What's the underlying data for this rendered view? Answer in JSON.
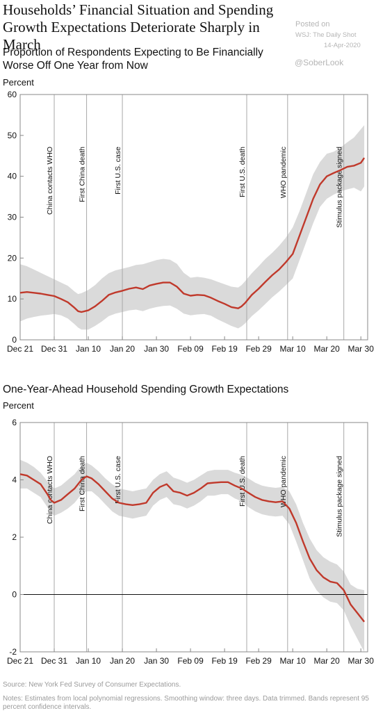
{
  "header": {
    "title": "Households’ Financial Situation and Spending Growth Expectations Deteriorate Sharply in March"
  },
  "watermark": {
    "posted": "Posted on",
    "source": "WSJ: The Daily Shot",
    "date": "14-Apr-2020",
    "handle": "@SoberLook"
  },
  "footer": {
    "source": "Source: New York Fed Survey of Consumer Expectations.",
    "notes": "Notes: Estimates from local polynomial regressions. Smoothing window: three days. Data trimmed. Bands represent 95 percent confidence intervals."
  },
  "colors": {
    "line": "#c0392b",
    "band": "#dadada",
    "axis": "#888888",
    "eventline": "#a8a8a8"
  },
  "chart_data": [
    {
      "type": "line",
      "title": "Proportion of Respondents Expecting to Be Financially Worse Off One Year from Now",
      "ylabel": "Percent",
      "ylim": [
        0,
        60
      ],
      "yticks": [
        0,
        10,
        20,
        30,
        40,
        50,
        60
      ],
      "xlim": [
        0,
        102
      ],
      "xticks": [
        {
          "x": 0,
          "label": "Dec 21"
        },
        {
          "x": 10,
          "label": "Dec 31"
        },
        {
          "x": 20,
          "label": "Jan 10"
        },
        {
          "x": 30,
          "label": "Jan 20"
        },
        {
          "x": 40,
          "label": "Jan 30"
        },
        {
          "x": 50,
          "label": "Feb 09"
        },
        {
          "x": 60,
          "label": "Feb 19"
        },
        {
          "x": 70,
          "label": "Feb 29"
        },
        {
          "x": 80,
          "label": "Mar 10"
        },
        {
          "x": 90,
          "label": "Mar 20"
        },
        {
          "x": 100,
          "label": "Mar 30"
        }
      ],
      "events": [
        {
          "x": 10,
          "label": "China contacts WHO"
        },
        {
          "x": 19.5,
          "label": "First China death"
        },
        {
          "x": 30,
          "label": "First U.S. case"
        },
        {
          "x": 66.5,
          "label": "First U.S. death"
        },
        {
          "x": 78.5,
          "label": "WHO pandemic"
        },
        {
          "x": 95,
          "label": "Stimulus package signed"
        }
      ],
      "series": [
        {
          "x": [
            0,
            2,
            4,
            6,
            8,
            10,
            12,
            14,
            16,
            17,
            18,
            20,
            22,
            24,
            26,
            28,
            30,
            32,
            34,
            36,
            38,
            40,
            42,
            44,
            46,
            48,
            50,
            52,
            54,
            56,
            58,
            60,
            62,
            64,
            65,
            66,
            68,
            70,
            72,
            74,
            76,
            78,
            80,
            82,
            84,
            86,
            88,
            90,
            92,
            94,
            96,
            98,
            100,
            101
          ],
          "values": [
            11.5,
            11.7,
            11.5,
            11.3,
            11.0,
            10.7,
            10.0,
            9.2,
            7.8,
            7.0,
            6.8,
            7.2,
            8.2,
            9.5,
            11.0,
            11.6,
            12.0,
            12.5,
            12.8,
            12.4,
            13.3,
            13.7,
            14.0,
            14.0,
            13.0,
            11.3,
            10.8,
            11.0,
            10.9,
            10.3,
            9.5,
            8.8,
            8.0,
            7.7,
            8.2,
            9.0,
            11.0,
            12.5,
            14.2,
            15.8,
            17.2,
            19.0,
            21.0,
            25.5,
            30.0,
            34.5,
            38.0,
            40.0,
            40.8,
            41.5,
            42.3,
            42.6,
            43.3,
            44.5
          ],
          "upper": [
            18.5,
            18.0,
            17.2,
            16.4,
            15.6,
            14.8,
            14.0,
            13.2,
            11.8,
            11.2,
            11.4,
            12.2,
            13.4,
            15.0,
            16.3,
            17.0,
            17.4,
            17.8,
            18.3,
            18.5,
            19.0,
            19.5,
            19.8,
            19.6,
            18.6,
            16.4,
            15.2,
            15.4,
            15.2,
            14.8,
            14.2,
            13.6,
            13.0,
            12.8,
            13.4,
            14.3,
            16.3,
            18.0,
            19.8,
            21.3,
            23.0,
            25.0,
            27.5,
            31.5,
            36.0,
            40.5,
            43.5,
            45.5,
            46.0,
            47.0,
            48.3,
            49.5,
            51.5,
            52.5
          ],
          "lower": [
            4.5,
            5.2,
            5.6,
            5.9,
            6.1,
            6.3,
            6.0,
            5.2,
            3.8,
            3.0,
            2.5,
            2.5,
            3.4,
            4.5,
            5.8,
            6.4,
            6.8,
            7.2,
            7.4,
            7.0,
            7.6,
            8.0,
            8.3,
            8.4,
            7.6,
            6.4,
            6.0,
            6.2,
            6.3,
            5.9,
            5.0,
            4.2,
            3.4,
            2.8,
            3.3,
            4.0,
            5.8,
            7.2,
            8.8,
            10.4,
            11.8,
            13.4,
            15.0,
            19.5,
            24.0,
            28.5,
            32.5,
            34.5,
            35.5,
            36.3,
            36.8,
            37.2,
            36.3,
            37.5
          ]
        }
      ]
    },
    {
      "type": "line",
      "title": "One-Year-Ahead Household Spending Growth Expectations",
      "ylabel": "Percent",
      "ylim": [
        -2,
        6
      ],
      "yticks": [
        -2,
        0,
        2,
        4,
        6
      ],
      "xlim": [
        0,
        102
      ],
      "xticks": [
        {
          "x": 0,
          "label": "Dec 21"
        },
        {
          "x": 10,
          "label": "Dec 31"
        },
        {
          "x": 20,
          "label": "Jan 10"
        },
        {
          "x": 30,
          "label": "Jan 20"
        },
        {
          "x": 40,
          "label": "Jan 30"
        },
        {
          "x": 50,
          "label": "Feb 09"
        },
        {
          "x": 60,
          "label": "Feb 19"
        },
        {
          "x": 70,
          "label": "Feb 29"
        },
        {
          "x": 80,
          "label": "Mar 10"
        },
        {
          "x": 90,
          "label": "Mar 20"
        },
        {
          "x": 100,
          "label": "Mar 30"
        }
      ],
      "events": [
        {
          "x": 10,
          "label": "China contacts WHO"
        },
        {
          "x": 19.5,
          "label": "First China death"
        },
        {
          "x": 30,
          "label": "First U.S. case"
        },
        {
          "x": 66.5,
          "label": "First U.S. death"
        },
        {
          "x": 78.5,
          "label": "WHO pandemic"
        },
        {
          "x": 95,
          "label": "Stimulus package signed"
        }
      ],
      "series": [
        {
          "x": [
            0,
            2,
            4,
            6,
            8,
            9,
            10,
            12,
            14,
            16,
            18,
            19.5,
            21,
            23,
            25,
            27,
            29,
            31,
            33,
            35,
            37,
            39,
            41,
            43,
            45,
            47,
            49,
            51,
            53,
            55,
            57,
            59,
            61,
            63,
            65,
            67,
            69,
            71,
            73,
            75,
            77,
            79,
            81,
            83,
            85,
            87,
            89,
            91,
            93,
            95,
            97,
            99,
            101
          ],
          "values": [
            4.2,
            4.15,
            4.0,
            3.85,
            3.5,
            3.3,
            3.2,
            3.3,
            3.5,
            3.7,
            4.0,
            4.12,
            4.05,
            3.85,
            3.6,
            3.35,
            3.2,
            3.15,
            3.12,
            3.15,
            3.2,
            3.55,
            3.75,
            3.85,
            3.6,
            3.55,
            3.45,
            3.55,
            3.7,
            3.88,
            3.9,
            3.92,
            3.92,
            3.8,
            3.7,
            3.55,
            3.4,
            3.3,
            3.25,
            3.22,
            3.25,
            3.0,
            2.5,
            1.85,
            1.25,
            0.85,
            0.6,
            0.45,
            0.4,
            0.15,
            -0.35,
            -0.65,
            -0.95
          ],
          "upper": [
            4.7,
            4.6,
            4.45,
            4.25,
            3.95,
            3.8,
            3.7,
            3.8,
            4.0,
            4.2,
            4.5,
            4.6,
            4.5,
            4.3,
            4.05,
            3.85,
            3.7,
            3.65,
            3.6,
            3.65,
            3.7,
            4.0,
            4.2,
            4.3,
            4.08,
            4.0,
            3.9,
            4.0,
            4.15,
            4.3,
            4.35,
            4.35,
            4.35,
            4.25,
            4.18,
            4.05,
            3.9,
            3.8,
            3.75,
            3.72,
            3.75,
            3.6,
            3.15,
            2.5,
            1.95,
            1.55,
            1.3,
            1.15,
            1.05,
            0.8,
            0.35,
            0.2,
            0.15
          ],
          "lower": [
            3.7,
            3.7,
            3.55,
            3.4,
            3.05,
            2.85,
            2.75,
            2.85,
            3.0,
            3.2,
            3.5,
            3.6,
            3.6,
            3.4,
            3.15,
            2.9,
            2.75,
            2.7,
            2.65,
            2.7,
            2.75,
            3.1,
            3.3,
            3.4,
            3.15,
            3.1,
            3.0,
            3.1,
            3.25,
            3.45,
            3.45,
            3.5,
            3.5,
            3.35,
            3.25,
            3.05,
            2.9,
            2.8,
            2.75,
            2.72,
            2.75,
            2.45,
            1.85,
            1.2,
            0.55,
            0.15,
            -0.1,
            -0.25,
            -0.3,
            -0.55,
            -1.1,
            -1.55,
            -2.0
          ]
        }
      ]
    }
  ]
}
